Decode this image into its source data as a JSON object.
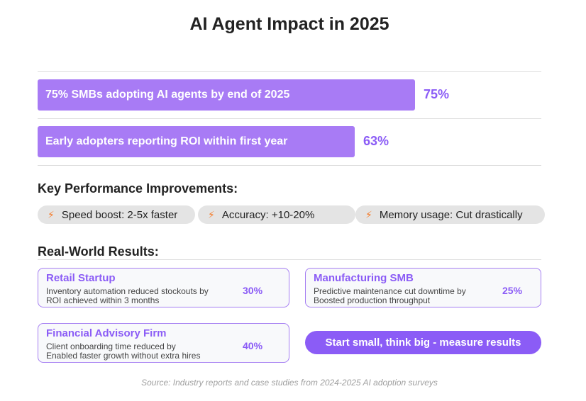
{
  "title": "AI Agent Impact in 2025",
  "stats": [
    {
      "label": "75% SMBs adopting AI agents by end of 2025",
      "value_text": "75%",
      "value": 75
    },
    {
      "label": "Early adopters reporting ROI within first year",
      "value_text": "63%",
      "value": 63
    }
  ],
  "kpi": {
    "heading": "Key Performance Improvements:",
    "pills": [
      {
        "icon": "lightning-icon",
        "label": "Speed boost: 2-5x faster"
      },
      {
        "icon": "lightning-icon",
        "label": "Accuracy: +10-20%"
      },
      {
        "icon": "lightning-icon",
        "label": "Memory usage: Cut drastically"
      }
    ]
  },
  "results": {
    "heading": "Real-World Results:",
    "cards": [
      {
        "title": "Retail Startup",
        "line1": "Inventory automation reduced stockouts by",
        "line2": "ROI achieved within 3 months",
        "value": "30%"
      },
      {
        "title": "Manufacturing SMB",
        "line1": "Predictive maintenance cut downtime by",
        "line2": "Boosted production throughput",
        "value": "25%"
      },
      {
        "title": "Financial Advisory Firm",
        "line1": "Client onboarding time reduced by",
        "line2": "Enabled faster growth without extra hires",
        "value": "40%"
      }
    ],
    "cta": "Start small, think big - measure results"
  },
  "source": "Source: Industry reports and case studies from 2024-2025 AI adoption surveys",
  "colors": {
    "accent": "#8b5cf6",
    "bar": "#a87bf5",
    "pill_bg": "#e4e4e4",
    "icon": "#f57c2b"
  }
}
